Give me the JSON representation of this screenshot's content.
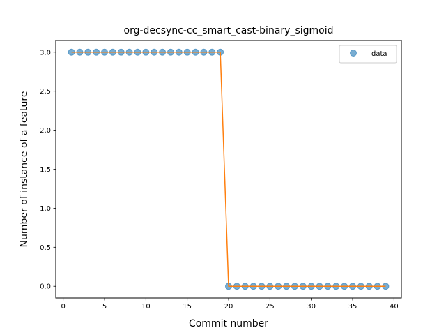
{
  "chart_data": {
    "type": "scatter",
    "title": "org-decsync-cc_smart_cast-binary_sigmoid",
    "xlabel": "Commit number",
    "ylabel": "Number of instance of a feature",
    "xlim": [
      -0.9,
      40.9
    ],
    "ylim": [
      -0.15,
      3.15
    ],
    "xticks": [
      0,
      5,
      10,
      15,
      20,
      25,
      30,
      35,
      40
    ],
    "xtick_labels": [
      "0",
      "5",
      "10",
      "15",
      "20",
      "25",
      "30",
      "35",
      "40"
    ],
    "yticks": [
      0.0,
      0.5,
      1.0,
      1.5,
      2.0,
      2.5,
      3.0
    ],
    "ytick_labels": [
      "0.0",
      "0.5",
      "1.0",
      "1.5",
      "2.0",
      "2.5",
      "3.0"
    ],
    "grid": false,
    "legend_position": "top-right",
    "series": [
      {
        "name": "data",
        "kind": "scatter",
        "color": "#1f77b4",
        "x": [
          1,
          2,
          3,
          4,
          5,
          6,
          7,
          8,
          9,
          10,
          11,
          12,
          13,
          14,
          15,
          16,
          17,
          18,
          19,
          20,
          21,
          22,
          23,
          24,
          25,
          26,
          27,
          28,
          29,
          30,
          31,
          32,
          33,
          34,
          35,
          36,
          37,
          38,
          39
        ],
        "y": [
          3,
          3,
          3,
          3,
          3,
          3,
          3,
          3,
          3,
          3,
          3,
          3,
          3,
          3,
          3,
          3,
          3,
          3,
          3,
          0,
          0,
          0,
          0,
          0,
          0,
          0,
          0,
          0,
          0,
          0,
          0,
          0,
          0,
          0,
          0,
          0,
          0,
          0,
          0
        ]
      },
      {
        "kind": "line",
        "color": "#ff7f0e",
        "x": [
          1,
          2,
          3,
          4,
          5,
          6,
          7,
          8,
          9,
          10,
          11,
          12,
          13,
          14,
          15,
          16,
          17,
          18,
          19,
          20,
          21,
          22,
          23,
          24,
          25,
          26,
          27,
          28,
          29,
          30,
          31,
          32,
          33,
          34,
          35,
          36,
          37,
          38,
          39
        ],
        "y": [
          3,
          3,
          3,
          3,
          3,
          3,
          3,
          3,
          3,
          3,
          3,
          3,
          3,
          3,
          3,
          3,
          3,
          3,
          3,
          0,
          0,
          0,
          0,
          0,
          0,
          0,
          0,
          0,
          0,
          0,
          0,
          0,
          0,
          0,
          0,
          0,
          0,
          0,
          0
        ]
      }
    ]
  }
}
